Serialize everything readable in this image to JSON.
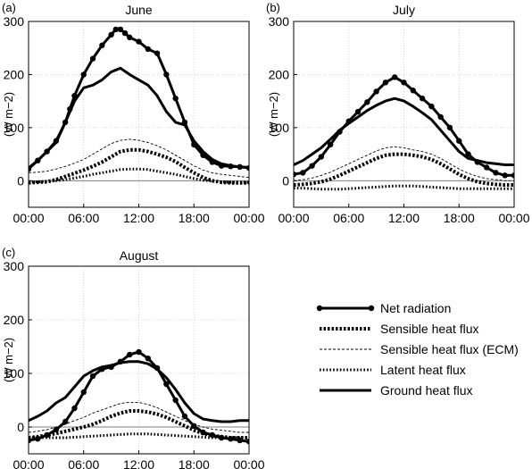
{
  "chart_data": [
    {
      "type": "line",
      "panel_label": "(a)",
      "title": "June",
      "ylabel": "(W m−2)",
      "ylim": [
        -50,
        300
      ],
      "yticks": [
        0,
        100,
        200,
        300
      ],
      "xticks": [
        "00:00",
        "06:00",
        "12:00",
        "18:00",
        "00:00"
      ],
      "x_hours": [
        0,
        24
      ],
      "grid": true,
      "series": [
        {
          "name": "Net radiation",
          "style": "thick-markers",
          "x": [
            0,
            1,
            2,
            3,
            4,
            4.5,
            5,
            6,
            7,
            8,
            9,
            9.5,
            10,
            10.5,
            11,
            12,
            13,
            14,
            15,
            16,
            17,
            18,
            19,
            20,
            21,
            22,
            23,
            24
          ],
          "y": [
            22,
            38,
            55,
            75,
            110,
            135,
            160,
            200,
            230,
            255,
            275,
            285,
            285,
            278,
            270,
            262,
            248,
            240,
            200,
            155,
            110,
            68,
            48,
            35,
            28,
            27,
            26,
            24
          ]
        },
        {
          "name": "Sensible heat flux",
          "style": "dotted-heavy",
          "x": [
            0,
            1,
            2,
            3,
            4,
            5,
            6,
            7,
            8,
            9,
            10,
            11,
            12,
            13,
            14,
            15,
            16,
            17,
            18,
            19,
            20,
            21,
            22,
            23,
            24
          ],
          "y": [
            -4,
            -3,
            -2,
            2,
            8,
            14,
            20,
            27,
            35,
            45,
            55,
            58,
            58,
            55,
            50,
            44,
            36,
            25,
            15,
            6,
            0,
            -3,
            -4,
            -4,
            -4
          ]
        },
        {
          "name": "Sensible heat flux (ECM)",
          "style": "thin-dashed",
          "x": [
            0,
            1,
            2,
            3,
            4,
            5,
            6,
            7,
            8,
            9,
            10,
            11,
            12,
            13,
            14,
            15,
            16,
            17,
            18,
            19,
            20,
            21,
            22,
            23,
            24
          ],
          "y": [
            15,
            16,
            18,
            22,
            27,
            33,
            40,
            50,
            60,
            70,
            76,
            78,
            76,
            72,
            66,
            58,
            48,
            38,
            28,
            20,
            15,
            12,
            10,
            8,
            6
          ]
        },
        {
          "name": "Latent heat flux",
          "style": "dotted-light",
          "x": [
            0,
            1,
            2,
            3,
            4,
            5,
            6,
            7,
            8,
            9,
            10,
            11,
            12,
            13,
            14,
            15,
            16,
            17,
            18,
            19,
            20,
            21,
            22,
            23,
            24
          ],
          "y": [
            -3,
            -2,
            -1,
            0,
            2,
            5,
            8,
            12,
            15,
            18,
            21,
            22,
            22,
            21,
            18,
            15,
            12,
            8,
            4,
            1,
            -1,
            -2,
            -3,
            -3,
            -3
          ]
        },
        {
          "name": "Ground heat flux",
          "style": "thick",
          "x": [
            0,
            1,
            2,
            3,
            4,
            5,
            6,
            7,
            8,
            9,
            10,
            11,
            12,
            13,
            14,
            15,
            16,
            17,
            18,
            19,
            20,
            21,
            22,
            23,
            24
          ],
          "y": [
            24,
            38,
            55,
            72,
            110,
            150,
            175,
            180,
            190,
            205,
            212,
            200,
            190,
            180,
            160,
            130,
            110,
            105,
            75,
            55,
            40,
            32,
            28,
            26,
            25
          ]
        }
      ]
    },
    {
      "type": "line",
      "panel_label": "(b)",
      "title": "July",
      "ylabel": "(W m−2)",
      "ylim": [
        -50,
        300
      ],
      "yticks": [
        0,
        100,
        200,
        300
      ],
      "xticks": [
        "00:00",
        "06:00",
        "12:00",
        "18:00",
        "00:00"
      ],
      "x_hours": [
        0,
        24
      ],
      "grid": true,
      "series": [
        {
          "name": "Net radiation",
          "style": "thick-markers",
          "x": [
            0,
            1,
            2,
            3,
            4,
            5,
            6,
            7,
            8,
            9,
            10,
            11,
            12,
            13,
            14,
            15,
            16,
            17,
            18,
            19,
            20,
            21,
            22,
            23,
            24
          ],
          "y": [
            12,
            15,
            28,
            45,
            68,
            92,
            112,
            130,
            148,
            168,
            185,
            195,
            185,
            170,
            155,
            140,
            120,
            100,
            75,
            50,
            35,
            25,
            15,
            10,
            10
          ]
        },
        {
          "name": "Sensible heat flux",
          "style": "dotted-heavy",
          "x": [
            0,
            1,
            2,
            3,
            4,
            5,
            6,
            7,
            8,
            9,
            10,
            11,
            12,
            13,
            14,
            15,
            16,
            17,
            18,
            19,
            20,
            21,
            22,
            23,
            24
          ],
          "y": [
            -8,
            -7,
            -5,
            -2,
            3,
            10,
            18,
            26,
            34,
            42,
            48,
            50,
            50,
            48,
            45,
            40,
            32,
            22,
            12,
            4,
            -2,
            -5,
            -7,
            -8,
            -8
          ]
        },
        {
          "name": "Sensible heat flux (ECM)",
          "style": "thin-dashed",
          "x": [
            0,
            1,
            2,
            3,
            4,
            5,
            6,
            7,
            8,
            9,
            10,
            11,
            12,
            13,
            14,
            15,
            16,
            17,
            18,
            19,
            20,
            21,
            22,
            23,
            24
          ],
          "y": [
            0,
            2,
            5,
            10,
            16,
            24,
            32,
            40,
            48,
            56,
            62,
            64,
            62,
            58,
            55,
            50,
            42,
            32,
            22,
            14,
            8,
            4,
            2,
            0,
            0
          ]
        },
        {
          "name": "Latent heat flux",
          "style": "dotted-light",
          "x": [
            0,
            1,
            2,
            3,
            4,
            5,
            6,
            7,
            8,
            9,
            10,
            11,
            12,
            13,
            14,
            15,
            16,
            17,
            18,
            19,
            20,
            21,
            22,
            23,
            24
          ],
          "y": [
            -14,
            -14,
            -15,
            -16,
            -16,
            -16,
            -15,
            -14,
            -13,
            -12,
            -11,
            -10,
            -10,
            -10,
            -11,
            -12,
            -13,
            -14,
            -15,
            -15,
            -15,
            -15,
            -15,
            -15,
            -15
          ]
        },
        {
          "name": "Ground heat flux",
          "style": "thick",
          "x": [
            0,
            1,
            2,
            3,
            4,
            5,
            6,
            7,
            8,
            9,
            10,
            11,
            12,
            13,
            14,
            15,
            16,
            17,
            18,
            19,
            20,
            21,
            22,
            23,
            24
          ],
          "y": [
            30,
            38,
            50,
            62,
            78,
            95,
            108,
            120,
            132,
            142,
            150,
            155,
            150,
            140,
            128,
            115,
            95,
            75,
            55,
            42,
            38,
            34,
            32,
            30,
            30
          ]
        }
      ]
    },
    {
      "type": "line",
      "panel_label": "(c)",
      "title": "August",
      "ylabel": "(W m−2)",
      "ylim": [
        -50,
        300
      ],
      "yticks": [
        0,
        100,
        200,
        300
      ],
      "xticks": [
        "00:00",
        "06:00",
        "12:00",
        "18:00",
        "00:00"
      ],
      "x_hours": [
        0,
        24
      ],
      "grid": true,
      "series": [
        {
          "name": "Net radiation",
          "style": "thick-markers",
          "x": [
            0,
            1,
            2,
            3,
            4,
            5,
            6,
            7,
            8,
            9,
            10,
            11,
            12,
            13,
            14,
            15,
            16,
            17,
            18,
            19,
            20,
            21,
            22,
            23,
            24
          ],
          "y": [
            -25,
            -22,
            -15,
            -5,
            10,
            35,
            65,
            95,
            108,
            112,
            122,
            135,
            140,
            128,
            110,
            80,
            50,
            20,
            2,
            -10,
            -15,
            -20,
            -22,
            -25,
            -27
          ]
        },
        {
          "name": "Sensible heat flux",
          "style": "dotted-heavy",
          "x": [
            0,
            1,
            2,
            3,
            4,
            5,
            6,
            7,
            8,
            9,
            10,
            11,
            12,
            13,
            14,
            15,
            16,
            17,
            18,
            19,
            20,
            21,
            22,
            23,
            24
          ],
          "y": [
            -20,
            -18,
            -15,
            -12,
            -8,
            -4,
            0,
            5,
            12,
            20,
            26,
            30,
            30,
            28,
            24,
            18,
            10,
            2,
            -6,
            -12,
            -16,
            -18,
            -20,
            -20,
            -20
          ]
        },
        {
          "name": "Sensible heat flux (ECM)",
          "style": "thin-dashed",
          "x": [
            0,
            1,
            2,
            3,
            4,
            5,
            6,
            7,
            8,
            9,
            10,
            11,
            12,
            13,
            14,
            15,
            16,
            17,
            18,
            19,
            20,
            21,
            22,
            23,
            24
          ],
          "y": [
            -10,
            -8,
            -5,
            0,
            5,
            12,
            18,
            26,
            32,
            38,
            44,
            46,
            46,
            42,
            36,
            28,
            20,
            12,
            5,
            0,
            -4,
            -6,
            -8,
            -10,
            -10
          ]
        },
        {
          "name": "Latent heat flux",
          "style": "dotted-light",
          "x": [
            0,
            1,
            2,
            3,
            4,
            5,
            6,
            7,
            8,
            9,
            10,
            11,
            12,
            13,
            14,
            15,
            16,
            17,
            18,
            19,
            20,
            21,
            22,
            23,
            24
          ],
          "y": [
            -20,
            -20,
            -20,
            -20,
            -20,
            -19,
            -18,
            -17,
            -16,
            -15,
            -14,
            -13,
            -13,
            -13,
            -14,
            -15,
            -16,
            -17,
            -18,
            -19,
            -20,
            -20,
            -20,
            -20,
            -20
          ]
        },
        {
          "name": "Ground heat flux",
          "style": "thick",
          "x": [
            0,
            1,
            2,
            3,
            4,
            5,
            6,
            7,
            8,
            9,
            10,
            11,
            12,
            13,
            14,
            15,
            16,
            17,
            18,
            19,
            20,
            21,
            22,
            23,
            24
          ],
          "y": [
            12,
            20,
            30,
            45,
            55,
            75,
            95,
            105,
            112,
            115,
            120,
            122,
            122,
            118,
            108,
            92,
            70,
            45,
            25,
            15,
            12,
            10,
            10,
            12,
            12
          ]
        }
      ]
    }
  ],
  "legend": {
    "items": [
      {
        "label": "Net radiation",
        "style": "thick-markers"
      },
      {
        "label": "Sensible heat flux",
        "style": "dotted-heavy"
      },
      {
        "label": "Sensible heat flux (ECM)",
        "style": "thin-dashed"
      },
      {
        "label": "Latent heat flux",
        "style": "dotted-light"
      },
      {
        "label": "Ground heat flux",
        "style": "thick"
      }
    ]
  },
  "colors": {
    "ink": "#000000",
    "grid": "#bbbbbb"
  }
}
